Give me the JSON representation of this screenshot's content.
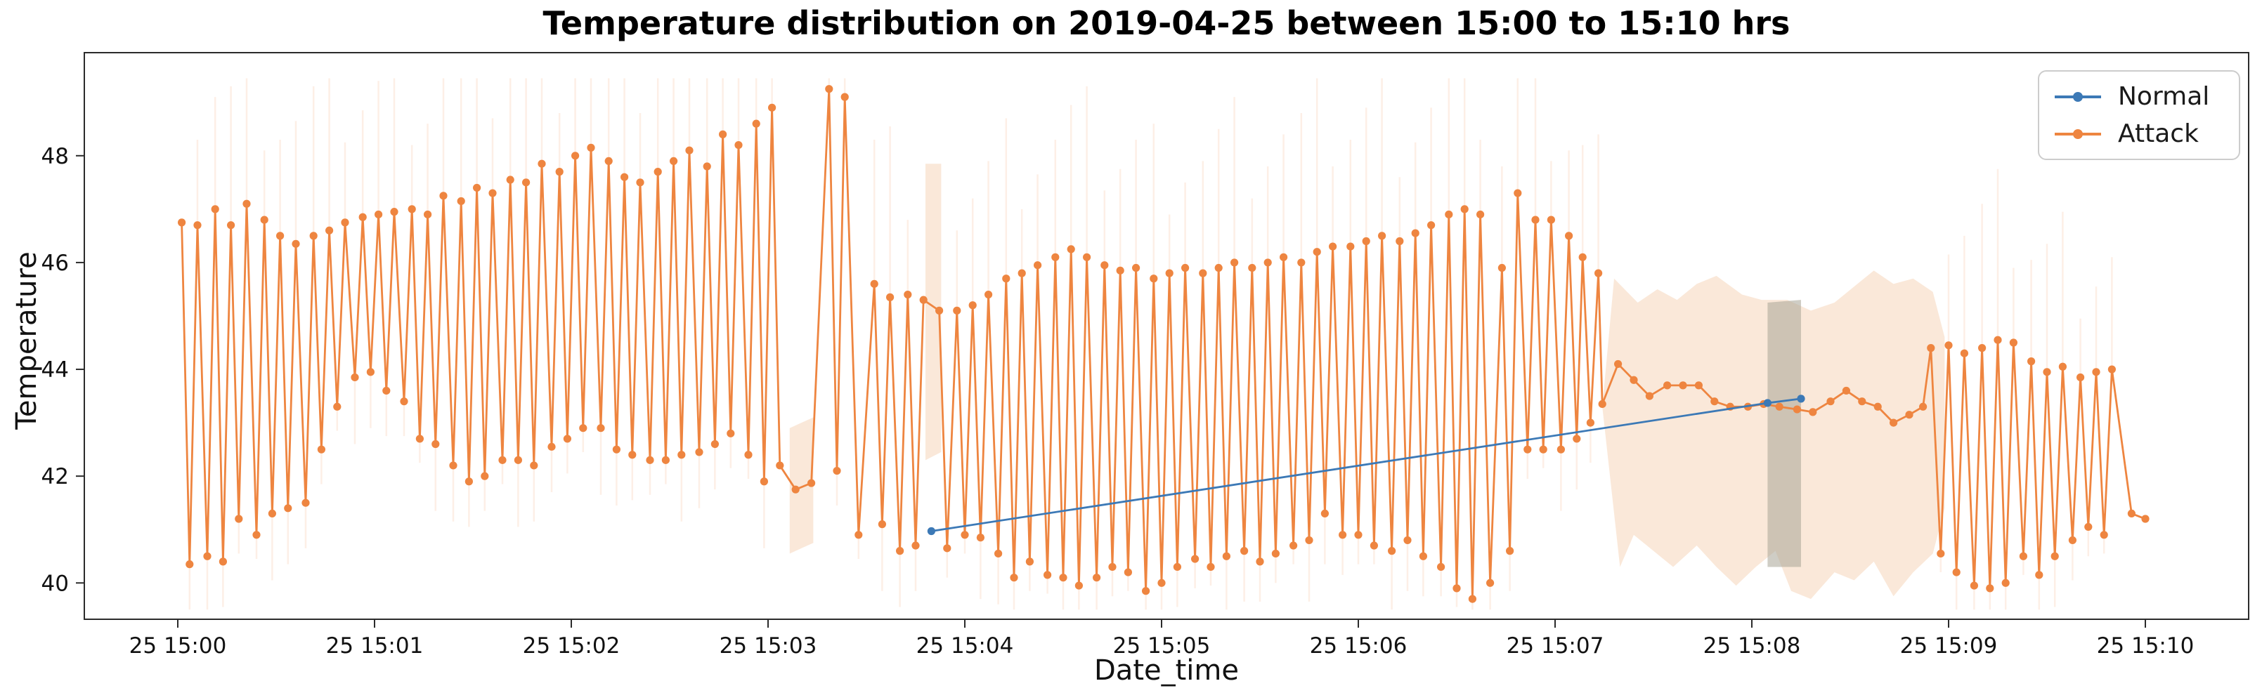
{
  "chart_data": {
    "type": "line",
    "title": "Temperature distribution on 2019-04-25 between 15:00 to 15:10 hrs",
    "xlabel": "Date_time",
    "ylabel": "Temperature",
    "x_unit": "minutes after 2019-04-25 15:00",
    "xlim": [
      -0.475,
      10.525
    ],
    "ylim": [
      39.32,
      49.93
    ],
    "grid": false,
    "yticks": [
      {
        "v": 40,
        "label": "40"
      },
      {
        "v": 42,
        "label": "42"
      },
      {
        "v": 44,
        "label": "44"
      },
      {
        "v": 46,
        "label": "46"
      },
      {
        "v": 48,
        "label": "48"
      }
    ],
    "xticks": [
      {
        "t": 0,
        "label": "25 15:00"
      },
      {
        "t": 1,
        "label": "25 15:01"
      },
      {
        "t": 2,
        "label": "25 15:02"
      },
      {
        "t": 3,
        "label": "25 15:03"
      },
      {
        "t": 4,
        "label": "25 15:04"
      },
      {
        "t": 5,
        "label": "25 15:05"
      },
      {
        "t": 6,
        "label": "25 15:06"
      },
      {
        "t": 7,
        "label": "25 15:07"
      },
      {
        "t": 8,
        "label": "25 15:08"
      },
      {
        "t": 9,
        "label": "25 15:09"
      },
      {
        "t": 10,
        "label": "25 15:10"
      }
    ],
    "legend": {
      "position": "upper right",
      "entries": [
        "Normal",
        "Attack"
      ]
    },
    "ci_streaks": {
      "color": "#ee8540",
      "opacity": 0.13,
      "width": 2.5
    },
    "bands": [
      {
        "name": "attack-ci-strip-a",
        "color": "#f6d9c0",
        "opacity": 0.6,
        "polygon": [
          [
            3.11,
            42.9
          ],
          [
            3.23,
            43.1
          ],
          [
            3.23,
            40.75
          ],
          [
            3.11,
            40.55
          ]
        ]
      },
      {
        "name": "attack-ci-strip-b",
        "color": "#f6d9c0",
        "opacity": 0.6,
        "polygon": [
          [
            3.8,
            47.85
          ],
          [
            3.88,
            47.85
          ],
          [
            3.88,
            42.45
          ],
          [
            3.8,
            42.3
          ]
        ]
      },
      {
        "name": "attack-ci-wide",
        "color": "#f6d9c0",
        "opacity": 0.6,
        "polygon": [
          [
            7.24,
            43.3
          ],
          [
            7.3,
            45.7
          ],
          [
            7.42,
            45.25
          ],
          [
            7.52,
            45.5
          ],
          [
            7.62,
            45.3
          ],
          [
            7.72,
            45.6
          ],
          [
            7.82,
            45.75
          ],
          [
            7.95,
            45.4
          ],
          [
            8.05,
            45.3
          ],
          [
            8.18,
            45.3
          ],
          [
            8.3,
            45.1
          ],
          [
            8.42,
            45.25
          ],
          [
            8.52,
            45.55
          ],
          [
            8.62,
            45.85
          ],
          [
            8.72,
            45.6
          ],
          [
            8.82,
            45.7
          ],
          [
            8.92,
            45.45
          ],
          [
            8.98,
            44.6
          ],
          [
            8.98,
            41.4
          ],
          [
            8.92,
            40.55
          ],
          [
            8.82,
            40.2
          ],
          [
            8.72,
            39.75
          ],
          [
            8.62,
            40.4
          ],
          [
            8.52,
            40.05
          ],
          [
            8.42,
            40.2
          ],
          [
            8.3,
            39.7
          ],
          [
            8.2,
            39.85
          ],
          [
            8.12,
            40.6
          ],
          [
            8.02,
            40.3
          ],
          [
            7.92,
            39.95
          ],
          [
            7.82,
            40.3
          ],
          [
            7.72,
            40.7
          ],
          [
            7.6,
            40.3
          ],
          [
            7.5,
            40.6
          ],
          [
            7.4,
            40.9
          ],
          [
            7.33,
            40.3
          ]
        ]
      },
      {
        "name": "normal-attack-overlap-band",
        "color": "#a8a495",
        "opacity": 0.55,
        "polygon": [
          [
            8.08,
            45.25
          ],
          [
            8.25,
            45.3
          ],
          [
            8.25,
            40.3
          ],
          [
            8.08,
            40.3
          ]
        ]
      }
    ],
    "series": [
      {
        "name": "Normal",
        "color": "#3c79b6",
        "marker": "circle",
        "points": [
          [
            3.83,
            40.97
          ],
          [
            8.08,
            43.37
          ],
          [
            8.25,
            43.45
          ]
        ]
      },
      {
        "name": "Attack",
        "color": "#ee8540",
        "marker": "circle",
        "points": [
          [
            0.02,
            46.75
          ],
          [
            0.06,
            40.35
          ],
          [
            0.1,
            46.7
          ],
          [
            0.15,
            40.5
          ],
          [
            0.19,
            47.0
          ],
          [
            0.23,
            40.4
          ],
          [
            0.27,
            46.7
          ],
          [
            0.31,
            41.2
          ],
          [
            0.35,
            47.1
          ],
          [
            0.4,
            40.9
          ],
          [
            0.44,
            46.8
          ],
          [
            0.48,
            41.3
          ],
          [
            0.52,
            46.5
          ],
          [
            0.56,
            41.4
          ],
          [
            0.6,
            46.35
          ],
          [
            0.65,
            41.5
          ],
          [
            0.69,
            46.5
          ],
          [
            0.73,
            42.5
          ],
          [
            0.77,
            46.6
          ],
          [
            0.81,
            43.3
          ],
          [
            0.85,
            46.75
          ],
          [
            0.9,
            43.85
          ],
          [
            0.94,
            46.85
          ],
          [
            0.98,
            43.95
          ],
          [
            1.02,
            46.9
          ],
          [
            1.06,
            43.6
          ],
          [
            1.1,
            46.95
          ],
          [
            1.15,
            43.4
          ],
          [
            1.19,
            47.0
          ],
          [
            1.23,
            42.7
          ],
          [
            1.27,
            46.9
          ],
          [
            1.31,
            42.6
          ],
          [
            1.35,
            47.25
          ],
          [
            1.4,
            42.2
          ],
          [
            1.44,
            47.15
          ],
          [
            1.48,
            41.9
          ],
          [
            1.52,
            47.4
          ],
          [
            1.56,
            42.0
          ],
          [
            1.6,
            47.3
          ],
          [
            1.65,
            42.3
          ],
          [
            1.69,
            47.55
          ],
          [
            1.73,
            42.3
          ],
          [
            1.77,
            47.5
          ],
          [
            1.81,
            42.2
          ],
          [
            1.85,
            47.85
          ],
          [
            1.9,
            42.55
          ],
          [
            1.94,
            47.7
          ],
          [
            1.98,
            42.7
          ],
          [
            2.02,
            48.0
          ],
          [
            2.06,
            42.9
          ],
          [
            2.1,
            48.15
          ],
          [
            2.15,
            42.9
          ],
          [
            2.19,
            47.9
          ],
          [
            2.23,
            42.5
          ],
          [
            2.27,
            47.6
          ],
          [
            2.31,
            42.4
          ],
          [
            2.35,
            47.5
          ],
          [
            2.4,
            42.3
          ],
          [
            2.44,
            47.7
          ],
          [
            2.48,
            42.3
          ],
          [
            2.52,
            47.9
          ],
          [
            2.56,
            42.4
          ],
          [
            2.6,
            48.1
          ],
          [
            2.65,
            42.45
          ],
          [
            2.69,
            47.8
          ],
          [
            2.73,
            42.6
          ],
          [
            2.77,
            48.4
          ],
          [
            2.81,
            42.8
          ],
          [
            2.85,
            48.2
          ],
          [
            2.9,
            42.4
          ],
          [
            2.94,
            48.6
          ],
          [
            2.98,
            41.9
          ],
          [
            3.02,
            48.9
          ],
          [
            3.06,
            42.2
          ],
          [
            3.14,
            41.75
          ],
          [
            3.22,
            41.87
          ],
          [
            3.31,
            49.25
          ],
          [
            3.35,
            42.1
          ],
          [
            3.39,
            49.1
          ],
          [
            3.46,
            40.9
          ],
          [
            3.54,
            45.6
          ],
          [
            3.58,
            41.1
          ],
          [
            3.62,
            45.35
          ],
          [
            3.67,
            40.6
          ],
          [
            3.71,
            45.4
          ],
          [
            3.75,
            40.7
          ],
          [
            3.79,
            45.3
          ],
          [
            3.87,
            45.1
          ],
          [
            3.91,
            40.65
          ],
          [
            3.96,
            45.1
          ],
          [
            4.0,
            40.9
          ],
          [
            4.04,
            45.2
          ],
          [
            4.08,
            40.85
          ],
          [
            4.12,
            45.4
          ],
          [
            4.17,
            40.55
          ],
          [
            4.21,
            45.7
          ],
          [
            4.25,
            40.1
          ],
          [
            4.29,
            45.8
          ],
          [
            4.33,
            40.4
          ],
          [
            4.37,
            45.95
          ],
          [
            4.42,
            40.15
          ],
          [
            4.46,
            46.1
          ],
          [
            4.5,
            40.1
          ],
          [
            4.54,
            46.25
          ],
          [
            4.58,
            39.95
          ],
          [
            4.62,
            46.1
          ],
          [
            4.67,
            40.1
          ],
          [
            4.71,
            45.95
          ],
          [
            4.75,
            40.3
          ],
          [
            4.79,
            45.85
          ],
          [
            4.83,
            40.2
          ],
          [
            4.87,
            45.9
          ],
          [
            4.92,
            39.85
          ],
          [
            4.96,
            45.7
          ],
          [
            5.0,
            40.0
          ],
          [
            5.04,
            45.8
          ],
          [
            5.08,
            40.3
          ],
          [
            5.12,
            45.9
          ],
          [
            5.17,
            40.45
          ],
          [
            5.21,
            45.8
          ],
          [
            5.25,
            40.3
          ],
          [
            5.29,
            45.9
          ],
          [
            5.33,
            40.5
          ],
          [
            5.37,
            46.0
          ],
          [
            5.42,
            40.6
          ],
          [
            5.46,
            45.9
          ],
          [
            5.5,
            40.4
          ],
          [
            5.54,
            46.0
          ],
          [
            5.58,
            40.55
          ],
          [
            5.62,
            46.1
          ],
          [
            5.67,
            40.7
          ],
          [
            5.71,
            46.0
          ],
          [
            5.75,
            40.8
          ],
          [
            5.79,
            46.2
          ],
          [
            5.83,
            41.3
          ],
          [
            5.87,
            46.3
          ],
          [
            5.92,
            40.9
          ],
          [
            5.96,
            46.3
          ],
          [
            6.0,
            40.9
          ],
          [
            6.04,
            46.4
          ],
          [
            6.08,
            40.7
          ],
          [
            6.12,
            46.5
          ],
          [
            6.17,
            40.6
          ],
          [
            6.21,
            46.4
          ],
          [
            6.25,
            40.8
          ],
          [
            6.29,
            46.55
          ],
          [
            6.33,
            40.5
          ],
          [
            6.37,
            46.7
          ],
          [
            6.42,
            40.3
          ],
          [
            6.46,
            46.9
          ],
          [
            6.5,
            39.9
          ],
          [
            6.54,
            47.0
          ],
          [
            6.58,
            39.7
          ],
          [
            6.62,
            46.9
          ],
          [
            6.67,
            40.0
          ],
          [
            6.73,
            45.9
          ],
          [
            6.77,
            40.6
          ],
          [
            6.81,
            47.3
          ],
          [
            6.86,
            42.5
          ],
          [
            6.9,
            46.8
          ],
          [
            6.94,
            42.5
          ],
          [
            6.98,
            46.8
          ],
          [
            7.03,
            42.5
          ],
          [
            7.07,
            46.5
          ],
          [
            7.11,
            42.7
          ],
          [
            7.14,
            46.1
          ],
          [
            7.18,
            43.0
          ],
          [
            7.22,
            45.8
          ],
          [
            7.24,
            43.35
          ],
          [
            7.32,
            44.1
          ],
          [
            7.4,
            43.8
          ],
          [
            7.48,
            43.5
          ],
          [
            7.57,
            43.7
          ],
          [
            7.65,
            43.7
          ],
          [
            7.73,
            43.7
          ],
          [
            7.81,
            43.4
          ],
          [
            7.89,
            43.3
          ],
          [
            7.98,
            43.3
          ],
          [
            8.06,
            43.35
          ],
          [
            8.14,
            43.3
          ],
          [
            8.23,
            43.25
          ],
          [
            8.31,
            43.2
          ],
          [
            8.4,
            43.4
          ],
          [
            8.48,
            43.6
          ],
          [
            8.56,
            43.4
          ],
          [
            8.64,
            43.3
          ],
          [
            8.72,
            43.0
          ],
          [
            8.8,
            43.15
          ],
          [
            8.87,
            43.3
          ],
          [
            8.91,
            44.4
          ],
          [
            8.96,
            40.55
          ],
          [
            9.0,
            44.45
          ],
          [
            9.04,
            40.2
          ],
          [
            9.08,
            44.3
          ],
          [
            9.13,
            39.95
          ],
          [
            9.17,
            44.4
          ],
          [
            9.21,
            39.9
          ],
          [
            9.25,
            44.55
          ],
          [
            9.29,
            40.0
          ],
          [
            9.33,
            44.5
          ],
          [
            9.38,
            40.5
          ],
          [
            9.42,
            44.15
          ],
          [
            9.46,
            40.15
          ],
          [
            9.5,
            43.95
          ],
          [
            9.54,
            40.5
          ],
          [
            9.58,
            44.05
          ],
          [
            9.63,
            40.8
          ],
          [
            9.67,
            43.85
          ],
          [
            9.71,
            41.05
          ],
          [
            9.75,
            43.95
          ],
          [
            9.79,
            40.9
          ],
          [
            9.83,
            44.0
          ],
          [
            9.93,
            41.3
          ],
          [
            10.0,
            41.2
          ]
        ]
      }
    ]
  }
}
